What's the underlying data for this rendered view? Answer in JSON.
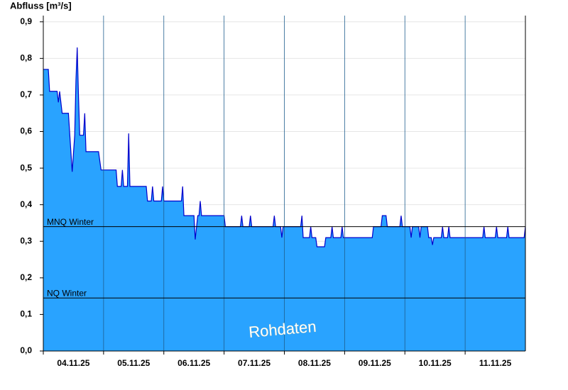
{
  "chart_data": {
    "type": "area",
    "y_label": "Abfluss [m³/s]",
    "watermark": "Rohdaten",
    "color": "#0000cc",
    "fill_color": "#29a3ff",
    "grid": true,
    "ylim": [
      0,
      0.917
    ],
    "yticks": [
      {
        "value": 0,
        "label": "0,0"
      },
      {
        "value": 0.1,
        "label": "0,1"
      },
      {
        "value": 0.2,
        "label": "0,2"
      },
      {
        "value": 0.3,
        "label": "0,3"
      },
      {
        "value": 0.4,
        "label": "0,4"
      },
      {
        "value": 0.5,
        "label": "0,5"
      },
      {
        "value": 0.6,
        "label": "0,6"
      },
      {
        "value": 0.7,
        "label": "0,7"
      },
      {
        "value": 0.8,
        "label": "0,8"
      },
      {
        "value": 0.9,
        "label": "0,9"
      }
    ],
    "xlim": [
      "2025-11-04T00:00",
      "2025-11-12T00:00"
    ],
    "xticks": [
      {
        "value": "2025-11-04T00:00",
        "label": "04.11.25"
      },
      {
        "value": "2025-11-05T00:00",
        "label": "05.11.25"
      },
      {
        "value": "2025-11-06T00:00",
        "label": "06.11.25"
      },
      {
        "value": "2025-11-07T00:00",
        "label": "07.11.25"
      },
      {
        "value": "2025-11-08T00:00",
        "label": "08.11.25"
      },
      {
        "value": "2025-11-09T00:00",
        "label": "09.11.25"
      },
      {
        "value": "2025-11-10T00:00",
        "label": "10.11.25"
      },
      {
        "value": "2025-11-11T00:00",
        "label": "11.11.25"
      }
    ],
    "reference_lines": [
      {
        "label": "MNQ Winter",
        "value": 0.34
      },
      {
        "label": "NQ Winter",
        "value": 0.145
      }
    ],
    "x": [
      "2025-11-04T00:00",
      "2025-11-04T02:00",
      "2025-11-04T02:30",
      "2025-11-04T05:30",
      "2025-11-04T06:00",
      "2025-11-04T06:30",
      "2025-11-04T07:00",
      "2025-11-04T07:30",
      "2025-11-04T10:00",
      "2025-11-04T11:30",
      "2025-11-04T12:30",
      "2025-11-04T13:00",
      "2025-11-04T13:30",
      "2025-11-04T14:00",
      "2025-11-04T14:30",
      "2025-11-04T16:00",
      "2025-11-04T16:30",
      "2025-11-04T17:00",
      "2025-11-04T22:00",
      "2025-11-04T23:00",
      "2025-11-05T05:00",
      "2025-11-05T05:30",
      "2025-11-05T07:00",
      "2025-11-05T07:30",
      "2025-11-05T08:00",
      "2025-11-05T09:30",
      "2025-11-05T10:00",
      "2025-11-05T10:30",
      "2025-11-05T17:00",
      "2025-11-05T17:30",
      "2025-11-05T19:00",
      "2025-11-05T19:30",
      "2025-11-05T20:00",
      "2025-11-05T23:00",
      "2025-11-05T23:30",
      "2025-11-06T00:00",
      "2025-11-06T07:00",
      "2025-11-06T07:30",
      "2025-11-06T08:00",
      "2025-11-06T12:00",
      "2025-11-06T12:30",
      "2025-11-06T13:30",
      "2025-11-06T14:00",
      "2025-11-06T14:30",
      "2025-11-06T15:00",
      "2025-11-07T00:00",
      "2025-11-07T00:30",
      "2025-11-07T06:30",
      "2025-11-07T07:00",
      "2025-11-07T07:30",
      "2025-11-07T10:00",
      "2025-11-07T10:30",
      "2025-11-07T11:00",
      "2025-11-07T19:30",
      "2025-11-07T20:00",
      "2025-11-07T20:30",
      "2025-11-07T22:30",
      "2025-11-07T23:00",
      "2025-11-07T23:30",
      "2025-11-08T06:30",
      "2025-11-08T07:00",
      "2025-11-08T07:30",
      "2025-11-08T10:00",
      "2025-11-08T10:30",
      "2025-11-08T11:00",
      "2025-11-08T12:30",
      "2025-11-08T13:00",
      "2025-11-08T16:00",
      "2025-11-08T16:30",
      "2025-11-08T18:30",
      "2025-11-08T19:00",
      "2025-11-08T19:30",
      "2025-11-08T22:30",
      "2025-11-08T23:00",
      "2025-11-08T23:30",
      "2025-11-09T11:00",
      "2025-11-09T11:30",
      "2025-11-09T14:30",
      "2025-11-09T15:00",
      "2025-11-09T16:30",
      "2025-11-09T17:00",
      "2025-11-09T22:00",
      "2025-11-09T22:30",
      "2025-11-09T23:00",
      "2025-11-10T02:00",
      "2025-11-10T02:30",
      "2025-11-10T03:00",
      "2025-11-10T05:30",
      "2025-11-10T06:00",
      "2025-11-10T06:30",
      "2025-11-10T09:00",
      "2025-11-10T09:30",
      "2025-11-10T10:30",
      "2025-11-10T11:00",
      "2025-11-10T11:30",
      "2025-11-10T14:30",
      "2025-11-10T15:00",
      "2025-11-10T15:30",
      "2025-11-10T17:00",
      "2025-11-10T17:30",
      "2025-11-10T18:00",
      "2025-11-11T07:00",
      "2025-11-11T07:30",
      "2025-11-11T08:00",
      "2025-11-11T12:00",
      "2025-11-11T12:30",
      "2025-11-11T13:00",
      "2025-11-11T16:30",
      "2025-11-11T17:00",
      "2025-11-11T17:30",
      "2025-11-11T23:30",
      "2025-11-12T00:00"
    ],
    "values": [
      0.77,
      0.77,
      0.71,
      0.71,
      0.68,
      0.71,
      0.68,
      0.65,
      0.65,
      0.49,
      0.59,
      0.74,
      0.83,
      0.7,
      0.59,
      0.59,
      0.65,
      0.545,
      0.545,
      0.495,
      0.495,
      0.45,
      0.45,
      0.495,
      0.45,
      0.45,
      0.595,
      0.45,
      0.45,
      0.41,
      0.41,
      0.45,
      0.41,
      0.41,
      0.45,
      0.41,
      0.41,
      0.45,
      0.37,
      0.37,
      0.305,
      0.37,
      0.37,
      0.41,
      0.37,
      0.37,
      0.34,
      0.34,
      0.37,
      0.34,
      0.34,
      0.37,
      0.34,
      0.34,
      0.37,
      0.34,
      0.34,
      0.31,
      0.34,
      0.34,
      0.37,
      0.31,
      0.31,
      0.34,
      0.31,
      0.31,
      0.285,
      0.285,
      0.31,
      0.31,
      0.34,
      0.31,
      0.31,
      0.34,
      0.31,
      0.31,
      0.34,
      0.34,
      0.37,
      0.37,
      0.34,
      0.34,
      0.37,
      0.34,
      0.34,
      0.31,
      0.34,
      0.34,
      0.31,
      0.34,
      0.34,
      0.31,
      0.31,
      0.29,
      0.31,
      0.31,
      0.34,
      0.31,
      0.31,
      0.34,
      0.31,
      0.31,
      0.34,
      0.31,
      0.31,
      0.34,
      0.31,
      0.31,
      0.34,
      0.31,
      0.31,
      0.34
    ]
  }
}
